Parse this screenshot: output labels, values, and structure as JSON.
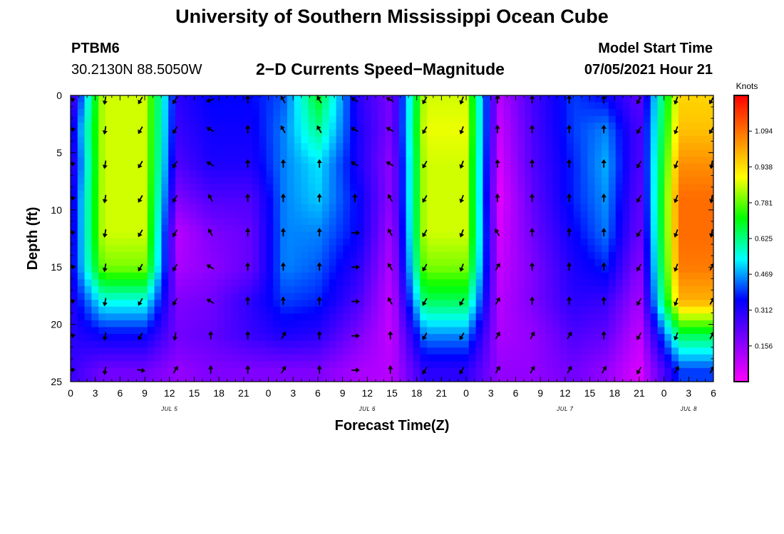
{
  "header": {
    "title": "University of Southern Mississippi Ocean Cube",
    "station_id": "PTBM6",
    "station_coords": "30.2130N  88.5050W",
    "plot_title": "2−D Currents Speed−Magnitude",
    "model_label": "Model Start Time",
    "model_time": "07/05/2021 Hour 21"
  },
  "footer": {
    "title": "University of Southern Mississippi Ocean Cube"
  },
  "chart_data": {
    "type": "heatmap",
    "xlabel": "Forecast Time(Z)",
    "ylabel": "Depth (ft)",
    "x_range_hours": [
      0,
      78
    ],
    "ylim": [
      0,
      25
    ],
    "y_inverted": true,
    "x_tick_labels": [
      "0",
      "3",
      "6",
      "9",
      "12",
      "15",
      "18",
      "21",
      "0",
      "3",
      "6",
      "9",
      "12",
      "15",
      "18",
      "21",
      "0",
      "3",
      "6",
      "9",
      "12",
      "15",
      "18",
      "21",
      "0",
      "3",
      "6"
    ],
    "y_ticks": [
      0,
      5,
      10,
      15,
      20,
      25
    ],
    "day_labels": [
      {
        "label": "JUL 5",
        "at_hour": 12
      },
      {
        "label": "JUL 6",
        "at_hour": 36
      },
      {
        "label": "JUL 7",
        "at_hour": 60
      },
      {
        "label": "JUL 8",
        "at_hour": 75
      }
    ],
    "colorbar": {
      "unit": "Knots",
      "range": [
        0,
        1.25
      ],
      "ticks": [
        0.156,
        0.312,
        0.469,
        0.625,
        0.781,
        0.938,
        1.094
      ],
      "tick_labels": [
        "0.156",
        "0.312",
        "0.469",
        "0.625",
        "0.781",
        "0.938",
        "1.094"
      ],
      "colors": [
        "#ff00ff",
        "#8000ff",
        "#0000ff",
        "#00ffff",
        "#00ff00",
        "#ffff00",
        "#ff8000",
        "#ff0000"
      ]
    },
    "depths_ft": [
      0,
      3,
      6,
      9,
      12,
      15,
      18,
      21,
      24
    ],
    "time_columns_hours": [
      0,
      4,
      9,
      13,
      17,
      22,
      26,
      30,
      35,
      39,
      43,
      48,
      52,
      56,
      61,
      65,
      69,
      74,
      78
    ],
    "speed_knots": [
      [
        0.2,
        0.3,
        0.25,
        0.3,
        0.3,
        0.32,
        0.3,
        0.3,
        0.28
      ],
      [
        0.86,
        0.86,
        0.86,
        0.86,
        0.86,
        0.8,
        0.55,
        0.35,
        0.2
      ],
      [
        0.86,
        0.86,
        0.86,
        0.86,
        0.86,
        0.8,
        0.55,
        0.35,
        0.2
      ],
      [
        0.3,
        0.28,
        0.25,
        0.18,
        0.1,
        0.12,
        0.18,
        0.2,
        0.15
      ],
      [
        0.36,
        0.34,
        0.32,
        0.25,
        0.18,
        0.16,
        0.2,
        0.22,
        0.18
      ],
      [
        0.36,
        0.34,
        0.32,
        0.25,
        0.22,
        0.22,
        0.3,
        0.28,
        0.18
      ],
      [
        0.42,
        0.45,
        0.45,
        0.45,
        0.45,
        0.45,
        0.4,
        0.32,
        0.18
      ],
      [
        0.7,
        0.62,
        0.52,
        0.5,
        0.45,
        0.42,
        0.38,
        0.3,
        0.18
      ],
      [
        0.3,
        0.32,
        0.32,
        0.35,
        0.35,
        0.3,
        0.25,
        0.18,
        0.12
      ],
      [
        0.18,
        0.18,
        0.15,
        0.15,
        0.12,
        0.1,
        0.08,
        0.08,
        0.1
      ],
      [
        0.86,
        0.88,
        0.86,
        0.86,
        0.86,
        0.8,
        0.65,
        0.45,
        0.3
      ],
      [
        0.86,
        0.88,
        0.86,
        0.86,
        0.86,
        0.8,
        0.65,
        0.45,
        0.3
      ],
      [
        0.1,
        0.08,
        0.06,
        0.04,
        0.06,
        0.08,
        0.1,
        0.12,
        0.15
      ],
      [
        0.26,
        0.25,
        0.24,
        0.22,
        0.2,
        0.18,
        0.18,
        0.15,
        0.15
      ],
      [
        0.4,
        0.4,
        0.38,
        0.38,
        0.35,
        0.32,
        0.3,
        0.25,
        0.2
      ],
      [
        0.35,
        0.45,
        0.48,
        0.46,
        0.44,
        0.38,
        0.28,
        0.22,
        0.15
      ],
      [
        0.22,
        0.25,
        0.24,
        0.22,
        0.2,
        0.16,
        0.12,
        0.08,
        0.05
      ],
      [
        0.95,
        0.98,
        1.05,
        1.1,
        1.1,
        1.08,
        1.0,
        0.65,
        0.4
      ],
      [
        0.95,
        0.98,
        1.05,
        1.1,
        1.1,
        1.08,
        1.0,
        0.65,
        0.4
      ]
    ],
    "arrow_columns_hours": [
      0,
      4.2,
      8.5,
      12.7,
      17,
      21.5,
      25.8,
      30.2,
      34.5,
      38.8,
      43,
      47.5,
      51.8,
      56,
      60.5,
      64.7,
      69,
      73.5,
      77.8
    ],
    "arrow_depths_ft": [
      0.4,
      3,
      6,
      9,
      12,
      15,
      18,
      21,
      24
    ],
    "arrow_directions_deg": [
      [
        80,
        80,
        80,
        80,
        80,
        80,
        80,
        80,
        80
      ],
      [
        190,
        190,
        190,
        190,
        190,
        190,
        190,
        190,
        190
      ],
      [
        210,
        210,
        210,
        210,
        210,
        210,
        210,
        210,
        100
      ],
      [
        210,
        210,
        210,
        210,
        210,
        210,
        210,
        190,
        30
      ],
      [
        250,
        300,
        300,
        330,
        330,
        300,
        300,
        0,
        0
      ],
      [
        0,
        0,
        0,
        0,
        0,
        0,
        0,
        0,
        0
      ],
      [
        330,
        330,
        0,
        0,
        0,
        0,
        0,
        30,
        30
      ],
      [
        330,
        330,
        0,
        0,
        0,
        0,
        0,
        0,
        0
      ],
      [
        300,
        300,
        300,
        0,
        90,
        90,
        90,
        90,
        90
      ],
      [
        300,
        300,
        300,
        330,
        330,
        330,
        330,
        0,
        0
      ],
      [
        210,
        210,
        210,
        210,
        210,
        210,
        210,
        210,
        210
      ],
      [
        200,
        200,
        200,
        200,
        200,
        200,
        210,
        210,
        210
      ],
      [
        0,
        0,
        0,
        0,
        330,
        30,
        30,
        30,
        30
      ],
      [
        0,
        0,
        0,
        0,
        0,
        0,
        0,
        30,
        30
      ],
      [
        0,
        0,
        0,
        0,
        0,
        0,
        0,
        30,
        30
      ],
      [
        0,
        0,
        0,
        0,
        0,
        0,
        0,
        0,
        30
      ],
      [
        210,
        210,
        210,
        210,
        210,
        210,
        210,
        210,
        210
      ],
      [
        200,
        200,
        200,
        200,
        200,
        200,
        200,
        200,
        30
      ],
      [
        210,
        210,
        190,
        190,
        190,
        30,
        30,
        30,
        30
      ]
    ]
  }
}
